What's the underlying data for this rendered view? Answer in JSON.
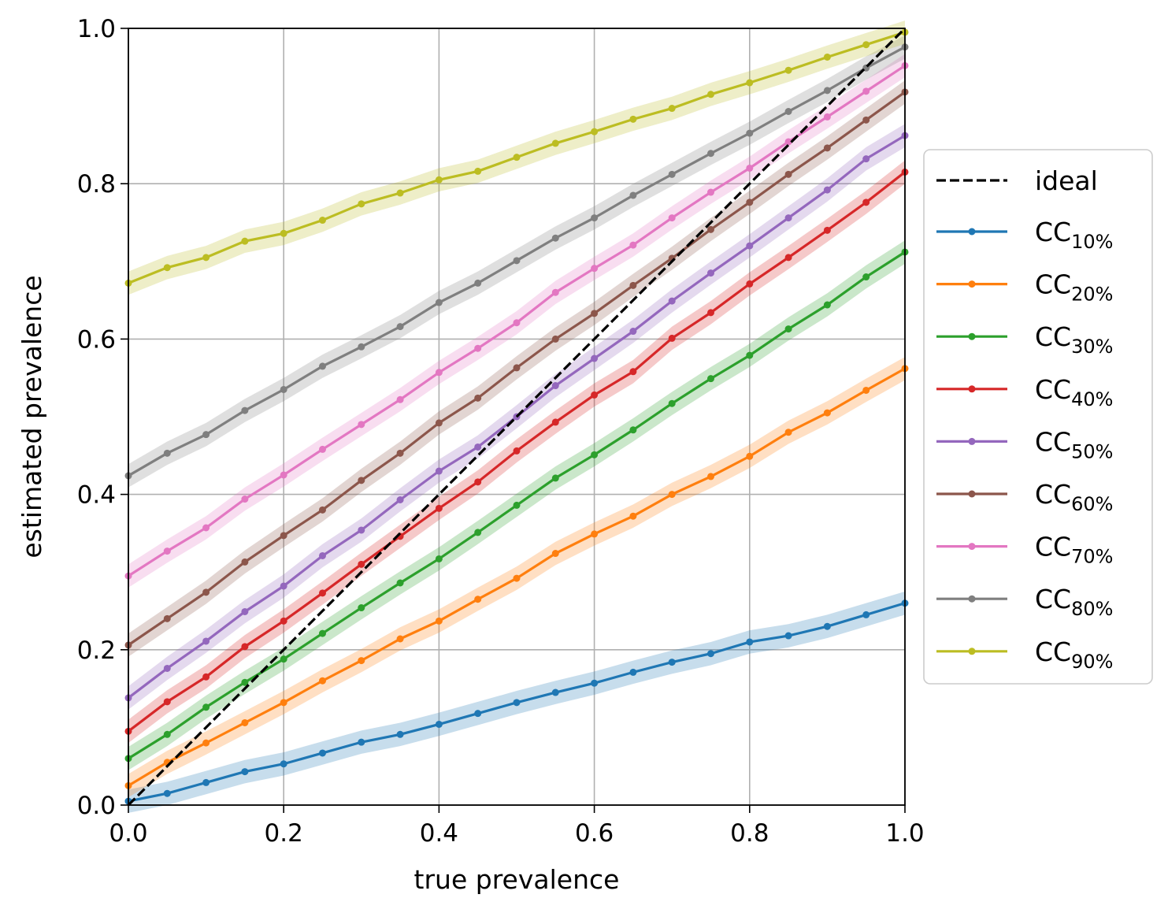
{
  "chart_data": {
    "type": "line",
    "title": "",
    "xlabel": "true prevalence",
    "ylabel": "estimated prevalence",
    "xlim": [
      0,
      1
    ],
    "ylim": [
      0,
      1
    ],
    "grid": true,
    "legend_placement": "outside-right",
    "x_ticks": [
      "0.0",
      "0.2",
      "0.4",
      "0.6",
      "0.8",
      "1.0"
    ],
    "y_ticks": [
      "0.0",
      "0.2",
      "0.4",
      "0.6",
      "0.8",
      "1.0"
    ],
    "x": [
      0,
      0.05,
      0.1,
      0.15,
      0.2,
      0.25,
      0.3,
      0.35,
      0.4,
      0.45,
      0.5,
      0.55,
      0.6,
      0.65,
      0.7,
      0.75,
      0.8,
      0.85,
      0.9,
      0.95,
      1.0
    ],
    "ideal": {
      "name": "ideal",
      "color": "#000000",
      "style": "dashed",
      "x": [
        0,
        1
      ],
      "y": [
        0,
        1
      ]
    },
    "series": [
      {
        "label": "CC",
        "subscript": "10%",
        "color": "#1f77b4",
        "values": [
          0.005,
          0.015,
          0.029,
          0.043,
          0.053,
          0.067,
          0.081,
          0.091,
          0.104,
          0.118,
          0.132,
          0.145,
          0.157,
          0.171,
          0.184,
          0.195,
          0.21,
          0.218,
          0.23,
          0.245,
          0.26
        ]
      },
      {
        "label": "CC",
        "subscript": "20%",
        "color": "#ff7f0e",
        "values": [
          0.025,
          0.055,
          0.08,
          0.106,
          0.132,
          0.16,
          0.186,
          0.214,
          0.237,
          0.265,
          0.292,
          0.324,
          0.349,
          0.372,
          0.4,
          0.423,
          0.449,
          0.48,
          0.505,
          0.534,
          0.562
        ]
      },
      {
        "label": "CC",
        "subscript": "30%",
        "color": "#2ca02c",
        "values": [
          0.06,
          0.091,
          0.126,
          0.158,
          0.188,
          0.221,
          0.254,
          0.286,
          0.317,
          0.351,
          0.386,
          0.421,
          0.451,
          0.483,
          0.517,
          0.549,
          0.579,
          0.613,
          0.644,
          0.68,
          0.712
        ]
      },
      {
        "label": "CC",
        "subscript": "40%",
        "color": "#d62728",
        "values": [
          0.095,
          0.133,
          0.165,
          0.204,
          0.237,
          0.273,
          0.31,
          0.346,
          0.382,
          0.416,
          0.456,
          0.493,
          0.528,
          0.558,
          0.601,
          0.634,
          0.671,
          0.705,
          0.74,
          0.776,
          0.815
        ]
      },
      {
        "label": "CC",
        "subscript": "50%",
        "color": "#9467bd",
        "values": [
          0.138,
          0.176,
          0.211,
          0.249,
          0.282,
          0.321,
          0.354,
          0.393,
          0.43,
          0.461,
          0.5,
          0.54,
          0.575,
          0.61,
          0.649,
          0.685,
          0.72,
          0.756,
          0.792,
          0.832,
          0.862
        ]
      },
      {
        "label": "CC",
        "subscript": "60%",
        "color": "#8c564b",
        "values": [
          0.206,
          0.24,
          0.274,
          0.313,
          0.347,
          0.38,
          0.418,
          0.453,
          0.492,
          0.524,
          0.563,
          0.6,
          0.633,
          0.669,
          0.704,
          0.741,
          0.776,
          0.812,
          0.846,
          0.882,
          0.918
        ]
      },
      {
        "label": "CC",
        "subscript": "70%",
        "color": "#e377c2",
        "values": [
          0.295,
          0.327,
          0.357,
          0.394,
          0.425,
          0.458,
          0.49,
          0.522,
          0.557,
          0.588,
          0.621,
          0.66,
          0.691,
          0.721,
          0.756,
          0.789,
          0.82,
          0.854,
          0.886,
          0.919,
          0.952
        ]
      },
      {
        "label": "CC",
        "subscript": "80%",
        "color": "#7f7f7f",
        "values": [
          0.424,
          0.453,
          0.477,
          0.508,
          0.535,
          0.565,
          0.59,
          0.616,
          0.647,
          0.672,
          0.701,
          0.73,
          0.756,
          0.785,
          0.812,
          0.839,
          0.865,
          0.893,
          0.92,
          0.949,
          0.976
        ]
      },
      {
        "label": "CC",
        "subscript": "90%",
        "color": "#bcbd22",
        "values": [
          0.672,
          0.692,
          0.705,
          0.726,
          0.736,
          0.753,
          0.774,
          0.788,
          0.805,
          0.816,
          0.834,
          0.852,
          0.867,
          0.883,
          0.897,
          0.915,
          0.93,
          0.946,
          0.963,
          0.979,
          0.995
        ]
      }
    ],
    "band_halfwidth": 0.015
  }
}
